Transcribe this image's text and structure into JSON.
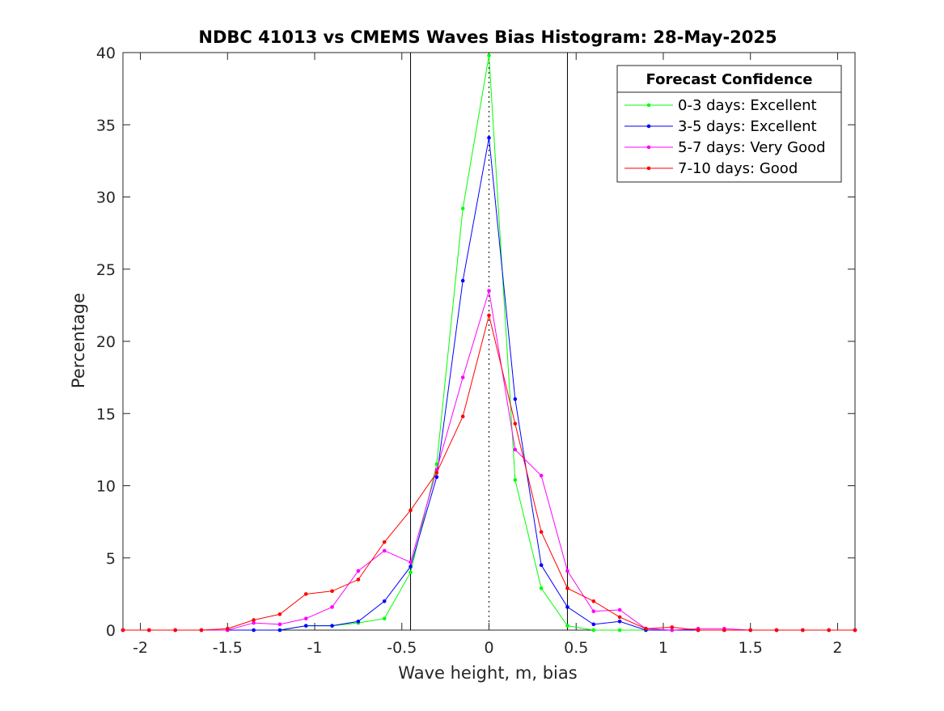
{
  "chart_data": {
    "type": "line",
    "title": "NDBC 41013 vs CMEMS Waves Bias Histogram: 28-May-2025",
    "xlabel": "Wave height, m, bias",
    "ylabel": "Percentage",
    "xlim": [
      -2.1,
      2.1
    ],
    "ylim": [
      0,
      40
    ],
    "xticks": [
      -2,
      -1.5,
      -1,
      -0.5,
      0,
      0.5,
      1,
      1.5,
      2
    ],
    "xtick_labels": [
      "-2",
      "-1.5",
      "-1",
      "-0.5",
      "0",
      "0.5",
      "1",
      "1.5",
      "2"
    ],
    "yticks": [
      0,
      5,
      10,
      15,
      20,
      25,
      30,
      35,
      40
    ],
    "ytick_labels": [
      "0",
      "5",
      "10",
      "15",
      "20",
      "25",
      "30",
      "35",
      "40"
    ],
    "grid": false,
    "legend_title": "Forecast Confidence",
    "legend_position": "top-right",
    "reference_lines": [
      {
        "x": -0.45,
        "style": "solid",
        "color": "#000000"
      },
      {
        "x": 0.45,
        "style": "solid",
        "color": "#000000"
      },
      {
        "x": 0,
        "style": "dotted",
        "color": "#000000"
      }
    ],
    "x": [
      -2.1,
      -1.95,
      -1.8,
      -1.65,
      -1.5,
      -1.35,
      -1.2,
      -1.05,
      -0.9,
      -0.75,
      -0.6,
      -0.45,
      -0.3,
      -0.15,
      0,
      0.15,
      0.3,
      0.45,
      0.6,
      0.75,
      0.9,
      1.05,
      1.2,
      1.35,
      1.5,
      1.65,
      1.8,
      1.95,
      2.1
    ],
    "series": [
      {
        "name": "0-3 days: Excellent",
        "color": "#00ff00",
        "values": [
          0,
          0,
          0,
          0,
          0,
          0,
          0,
          0.3,
          0.3,
          0.5,
          0.8,
          4.0,
          11.5,
          29.2,
          39.8,
          10.4,
          2.9,
          0.3,
          0,
          0,
          0,
          0,
          0,
          0,
          0,
          0,
          0,
          0,
          0
        ]
      },
      {
        "name": "3-5 days: Excellent",
        "color": "#0000ff",
        "values": [
          0,
          0,
          0,
          0,
          0,
          0,
          0,
          0.3,
          0.3,
          0.6,
          2.0,
          4.4,
          10.6,
          24.2,
          34.1,
          16.0,
          4.5,
          1.6,
          0.4,
          0.6,
          0,
          0,
          0,
          0,
          0,
          0,
          0,
          0,
          0
        ]
      },
      {
        "name": "5-7 days: Very Good",
        "color": "#ff00ff",
        "values": [
          0,
          0,
          0,
          0,
          0,
          0.5,
          0.4,
          0.8,
          1.6,
          4.1,
          5.5,
          4.7,
          11.1,
          17.5,
          23.5,
          12.5,
          10.7,
          4.1,
          1.3,
          1.4,
          0.1,
          0,
          0.1,
          0.1,
          0,
          0,
          0,
          0,
          0
        ]
      },
      {
        "name": "7-10 days: Good",
        "color": "#ff0000",
        "values": [
          0,
          0,
          0,
          0,
          0.1,
          0.7,
          1.1,
          2.5,
          2.7,
          3.5,
          6.1,
          8.3,
          10.9,
          14.8,
          21.8,
          14.3,
          6.8,
          2.9,
          2.0,
          0.9,
          0.1,
          0.2,
          0,
          0,
          0,
          0,
          0,
          0,
          0
        ]
      }
    ]
  }
}
